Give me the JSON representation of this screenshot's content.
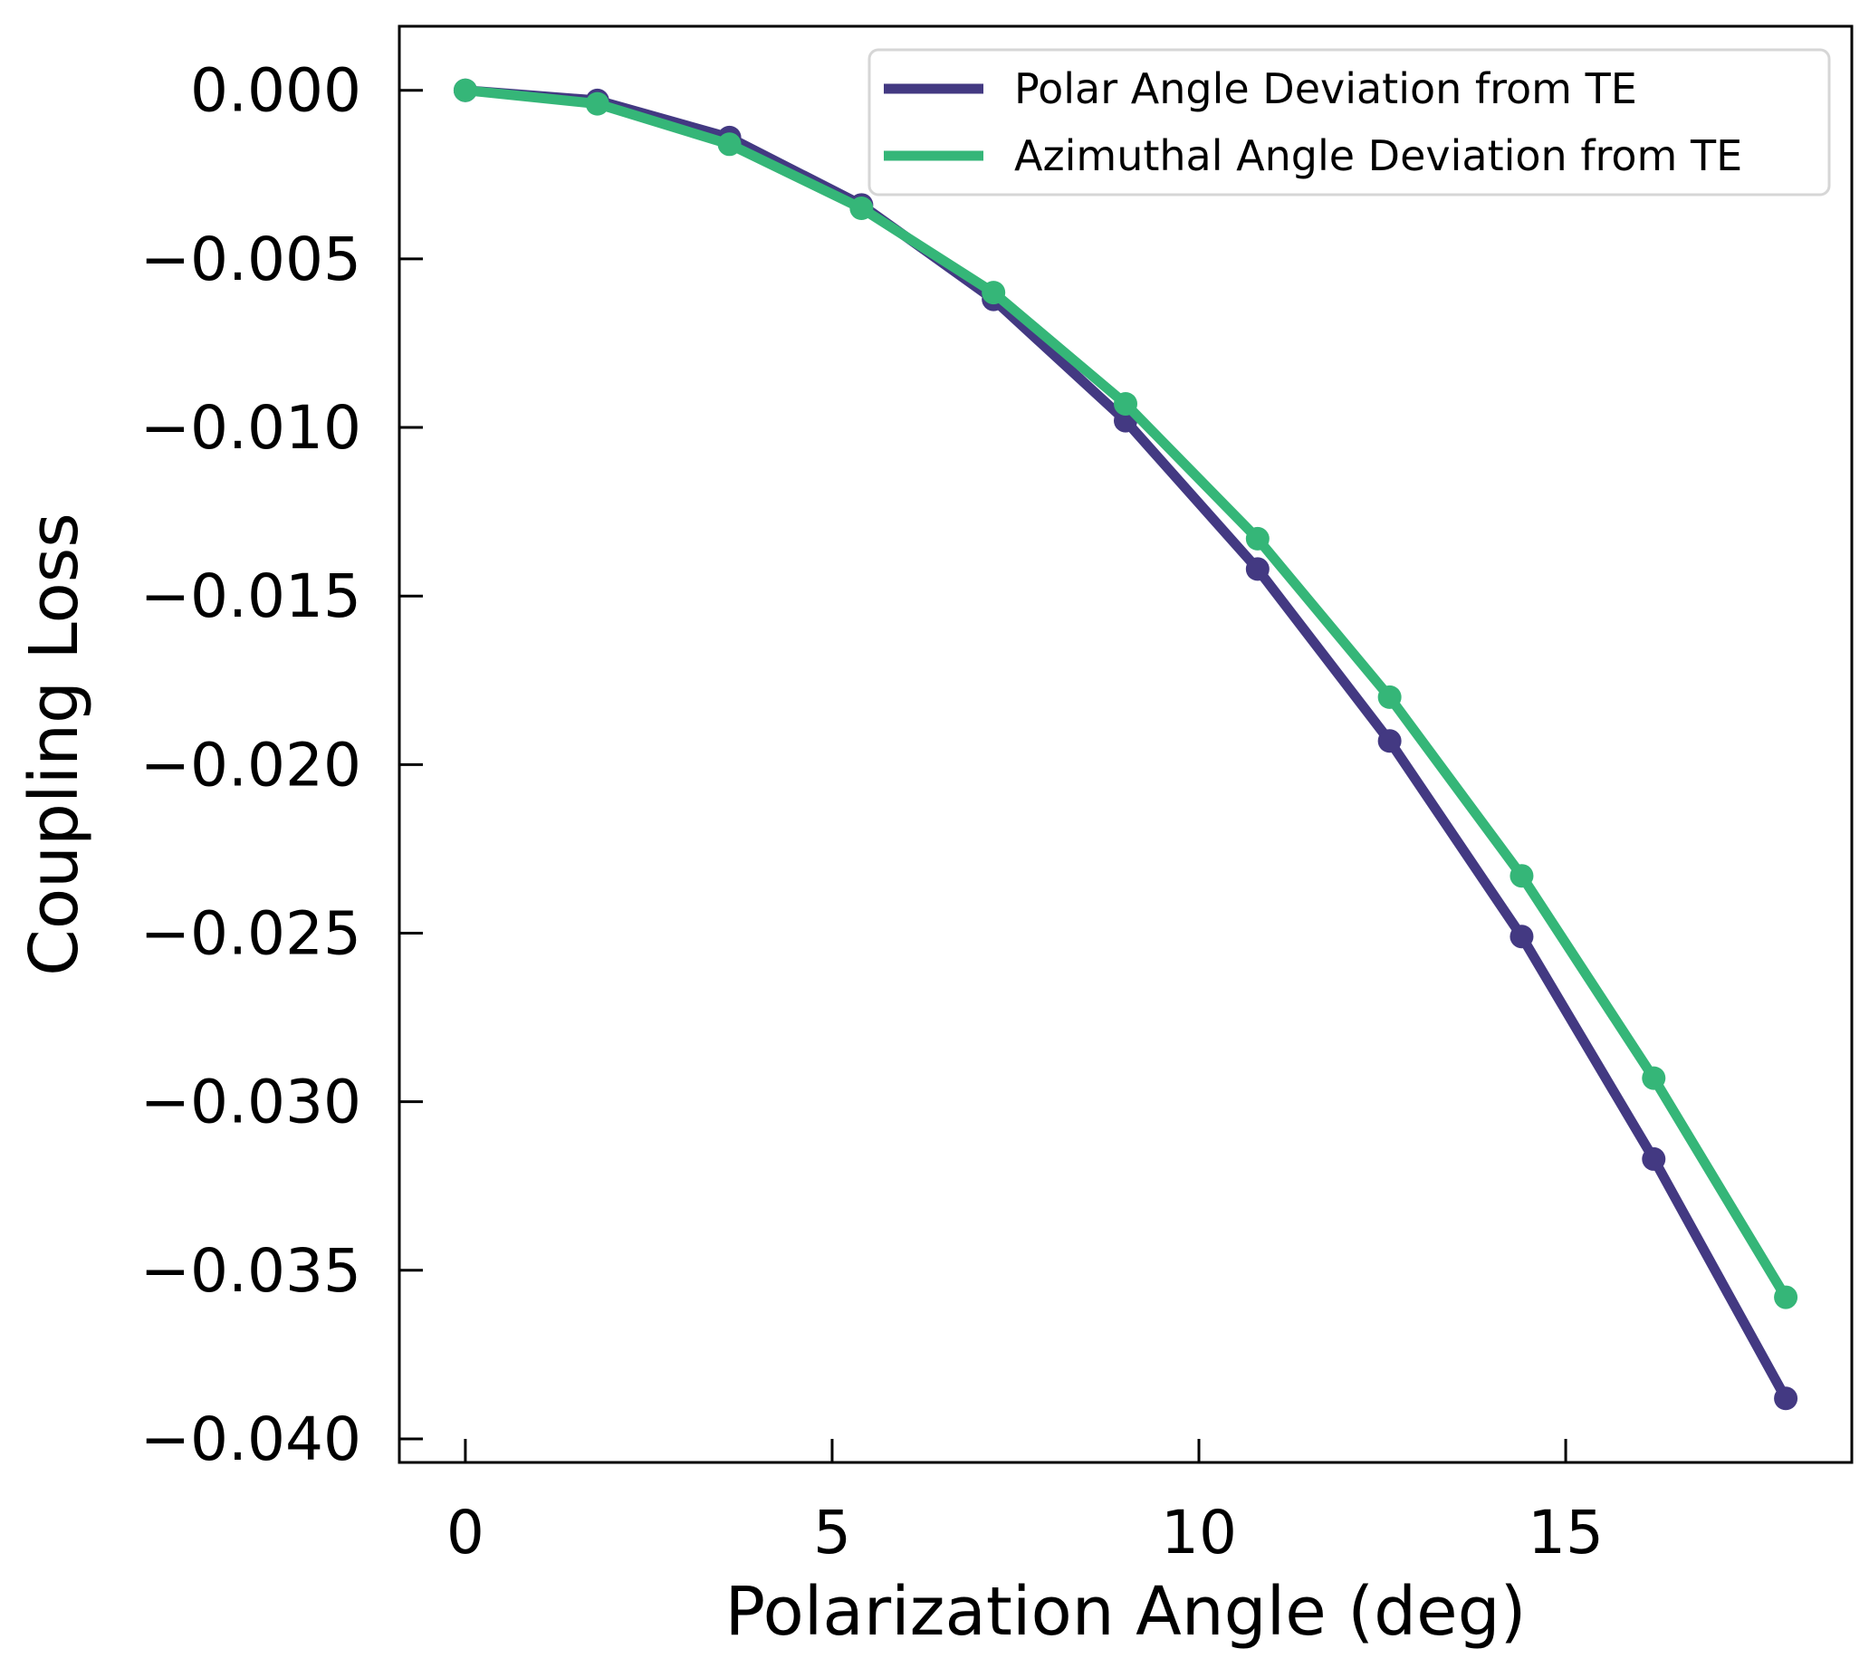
{
  "chart_data": {
    "type": "line",
    "title": "",
    "xlabel": "Polarization Angle (deg)",
    "ylabel": "Coupling Loss",
    "xlim": [
      -0.9,
      18.9
    ],
    "ylim": [
      -0.0407,
      0.0019
    ],
    "xticks": [
      0,
      5,
      10,
      15
    ],
    "xtick_labels": [
      "0",
      "5",
      "10",
      "15"
    ],
    "yticks": [
      0.0,
      -0.005,
      -0.01,
      -0.015,
      -0.02,
      -0.025,
      -0.03,
      -0.035,
      -0.04
    ],
    "ytick_labels": [
      "0.000",
      "−0.005",
      "−0.010",
      "−0.015",
      "−0.020",
      "−0.025",
      "−0.030",
      "−0.035",
      "−0.040"
    ],
    "grid": false,
    "legend_position": "top-right",
    "x": [
      0,
      1.8,
      3.6,
      5.4,
      7.2,
      9.0,
      10.8,
      12.6,
      14.4,
      16.2,
      18.0
    ],
    "series": [
      {
        "name": "Polar Angle Deviation from TE",
        "color": "#433982",
        "values": [
          0.0,
          -0.0003,
          -0.0014,
          -0.0034,
          -0.0062,
          -0.0098,
          -0.0142,
          -0.0193,
          -0.0251,
          -0.0317,
          -0.0388
        ]
      },
      {
        "name": "Azimuthal Angle Deviation from TE",
        "color": "#35b678",
        "values": [
          0.0,
          -0.0004,
          -0.0016,
          -0.0035,
          -0.006,
          -0.0093,
          -0.0133,
          -0.018,
          -0.0233,
          -0.0293,
          -0.0358
        ]
      }
    ]
  }
}
